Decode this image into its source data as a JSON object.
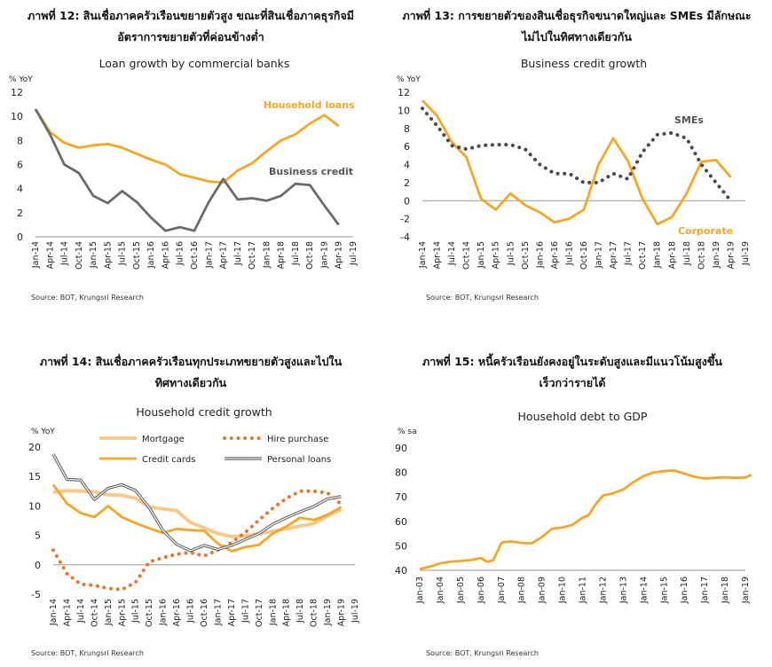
{
  "chart_data": [
    {
      "type": "line",
      "caption": [
        "ภาพที่ 12: สินเชื่อภาคครัวเรือนขยายตัวสูง ขณะที่สินเชื่อภาคธุรกิจมี",
        "อัตราการขยายตัวที่ค่อนข้างต่ำ"
      ],
      "title": "Loan growth by commercial banks",
      "ylabel": "% YoY",
      "ylim": [
        0,
        12
      ],
      "yticks": [
        "0",
        "2",
        "4",
        "6",
        "8",
        "10",
        "12"
      ],
      "categories": [
        "Jan-14",
        "Apr-14",
        "Jul-14",
        "Oct-14",
        "Jan-15",
        "Apr-15",
        "Jul-15",
        "Oct-15",
        "Jan-16",
        "Apr-16",
        "Jul-16",
        "Oct-16",
        "Jan-17",
        "Apr-17",
        "Jul-17",
        "Oct-17",
        "Jan-18",
        "Apr-18",
        "Jul-18",
        "Oct-18",
        "Jan-19",
        "Apr-19",
        "Jul-19"
      ],
      "series": [
        {
          "name": "Household loans",
          "color": "#F5A623",
          "style": "solid",
          "values": [
            10.6,
            8.7,
            7.8,
            7.4,
            7.6,
            7.7,
            7.4,
            6.9,
            6.4,
            6.0,
            5.2,
            4.9,
            4.6,
            4.5,
            5.5,
            6.1,
            7.1,
            8.0,
            8.5,
            9.4,
            10.1,
            9.2,
            null
          ]
        },
        {
          "name": "Business credit",
          "color": "#6B6B6B",
          "style": "solid",
          "values": [
            10.6,
            8.5,
            6.0,
            5.3,
            3.4,
            2.8,
            3.8,
            2.9,
            1.6,
            0.5,
            0.8,
            0.5,
            2.9,
            4.8,
            3.1,
            3.2,
            3.0,
            3.4,
            4.4,
            4.3,
            2.6,
            1.0,
            null
          ]
        }
      ],
      "source": "Source: BOT, Krungsri Research"
    },
    {
      "type": "line",
      "caption": [
        "ภาพที่ 13: การขยายตัวของสินเชื่อธุรกิจขนาดใหญ่และ SMEs มีลักษณะ",
        "ไม่ไปในทิศทางเดียวกัน"
      ],
      "title": "Business credit growth",
      "ylabel": "% YoY",
      "ylim": [
        -4,
        12
      ],
      "yticks": [
        "-4",
        "-2",
        "0",
        "2",
        "4",
        "6",
        "8",
        "10",
        "12"
      ],
      "categories": [
        "Jan-14",
        "Apr-14",
        "Jul-14",
        "Oct-14",
        "Jan-15",
        "Apr-15",
        "Jul-15",
        "Oct-15",
        "Jan-16",
        "Apr-16",
        "Jul-16",
        "Oct-16",
        "Jan-17",
        "Apr-17",
        "Jul-17",
        "Oct-17",
        "Jan-18",
        "Apr-18",
        "Jul-18",
        "Oct-18",
        "Jan-19",
        "Apr-19",
        "Jul-19"
      ],
      "series": [
        {
          "name": "Corporate",
          "color": "#F5A623",
          "style": "solid",
          "values": [
            11.1,
            9.4,
            6.5,
            4.8,
            0.2,
            -1.0,
            0.8,
            -0.5,
            -1.3,
            -2.4,
            -2.0,
            -1.0,
            4.0,
            6.9,
            4.4,
            0.2,
            -2.6,
            -1.8,
            0.8,
            4.3,
            4.5,
            2.6,
            null
          ]
        },
        {
          "name": "SMEs",
          "color": "#4A4A4A",
          "style": "dotted",
          "values": [
            10.2,
            8.3,
            6.1,
            5.7,
            6.1,
            6.2,
            6.2,
            5.7,
            4.0,
            3.0,
            3.0,
            2.0,
            2.0,
            3.0,
            2.4,
            5.4,
            7.3,
            7.5,
            6.9,
            4.0,
            2.0,
            0.0,
            null
          ]
        }
      ],
      "source": "Source: BOT, Krungsri Research"
    },
    {
      "type": "line",
      "caption": [
        "ภาพที่ 14: สินเชื่อภาคครัวเรือนทุกประเภทขยายตัวสูงและไปใน",
        "ทิศทางเดียวกัน"
      ],
      "title": "Household credit growth",
      "ylabel": "% YoY",
      "ylim": [
        -5,
        20
      ],
      "yticks": [
        "-5",
        "0",
        "5",
        "10",
        "15",
        "20"
      ],
      "categories": [
        "Jan-14",
        "Apr-14",
        "Jul-14",
        "Oct-14",
        "Jan-15",
        "Apr-15",
        "Jul-15",
        "Oct-15",
        "Jan-16",
        "Apr-16",
        "Jul-16",
        "Oct-16",
        "Jan-17",
        "Apr-17",
        "Jul-17",
        "Oct-17",
        "Jan-18",
        "Apr-18",
        "Jul-18",
        "Oct-18",
        "Jan-19",
        "Apr-19",
        "Jul-19"
      ],
      "series": [
        {
          "name": "Mortgage",
          "color": "#F7C98A",
          "style": "thick",
          "values": [
            12.3,
            12.6,
            12.5,
            12.4,
            11.9,
            11.8,
            11.3,
            9.8,
            9.5,
            9.2,
            7.2,
            6.3,
            5.3,
            4.8,
            4.9,
            5.3,
            5.7,
            6.1,
            6.6,
            7.0,
            8.3,
            9.4,
            null
          ]
        },
        {
          "name": "Hire purchase",
          "color": "#E8772E",
          "style": "dotted",
          "values": [
            2.5,
            -1.5,
            -3.3,
            -3.5,
            -4.0,
            -4.2,
            -3.0,
            0.5,
            1.2,
            1.8,
            2.1,
            1.5,
            2.5,
            3.8,
            5.5,
            7.6,
            9.6,
            11.3,
            12.5,
            12.5,
            12.2,
            10.3,
            null
          ]
        },
        {
          "name": "Credit cards",
          "color": "#F5A623",
          "style": "solid",
          "values": [
            13.6,
            10.4,
            8.8,
            8.1,
            10.0,
            8.1,
            7.1,
            6.2,
            5.4,
            6.1,
            5.9,
            5.8,
            3.6,
            2.3,
            3.0,
            3.4,
            5.3,
            6.5,
            8.0,
            7.6,
            8.5,
            9.8,
            null
          ]
        },
        {
          "name": "Personal loans",
          "color": "#6B6B6B",
          "style": "double",
          "values": [
            18.8,
            14.5,
            14.4,
            11.1,
            13.0,
            13.6,
            12.6,
            9.7,
            5.8,
            3.5,
            2.4,
            3.3,
            2.6,
            3.3,
            4.3,
            5.3,
            6.9,
            8.0,
            9.0,
            9.9,
            11.2,
            11.6,
            null
          ]
        }
      ],
      "source": "Source: BOT, Krungsri Research"
    },
    {
      "type": "line",
      "caption": [
        "ภาพที่ 15: หนี้ครัวเรือนยังคงอยู่ในระดับสูงและมีแนวโน้มสูงขึ้น",
        "เร็วกว่ารายได้"
      ],
      "title": "Household debt to GDP",
      "ylabel": "% sa",
      "ylim": [
        40,
        90
      ],
      "yticks": [
        "40",
        "50",
        "60",
        "70",
        "80",
        "90"
      ],
      "categories": [
        "Jan-03",
        "Jan-04",
        "Jan-05",
        "Jan-06",
        "Jan-07",
        "Jan-08",
        "Jan-09",
        "Jan-10",
        "Jan-11",
        "Jan-12",
        "Jan-13",
        "Jan-14",
        "Jan-15",
        "Jan-16",
        "Jan-17",
        "Jan-18",
        "Jan-19"
      ],
      "series": [
        {
          "name": "Household debt to GDP",
          "color": "#F5A623",
          "style": "solid",
          "x": [
            0,
            0.5,
            1,
            1.5,
            2,
            2.5,
            3,
            3.3,
            3.6,
            4,
            4.1,
            4.5,
            5,
            5.5,
            6,
            6.5,
            7,
            7.5,
            8,
            8.3,
            8.6,
            9,
            9.5,
            10,
            10.5,
            11,
            11.5,
            12,
            12.5,
            13,
            13.5,
            14,
            14.5,
            15,
            15.5,
            16,
            16.3
          ],
          "values": [
            40.5,
            41.5,
            42.8,
            43.5,
            43.8,
            44.2,
            45.0,
            43.5,
            44.0,
            51.0,
            51.5,
            51.8,
            51.2,
            51.0,
            53.5,
            57.0,
            57.5,
            58.5,
            61.5,
            62.5,
            66.5,
            70.5,
            71.5,
            73.0,
            76.0,
            78.5,
            80.0,
            80.5,
            80.8,
            79.5,
            78.2,
            77.5,
            77.8,
            78.0,
            77.8,
            77.9,
            79.0
          ]
        }
      ],
      "source": "Source: BOT, Krungsri Research"
    }
  ],
  "legend_labels": {
    "c1": [
      "Household loans",
      "Business credit"
    ],
    "c2": [
      "SMEs",
      "Corporate"
    ]
  }
}
